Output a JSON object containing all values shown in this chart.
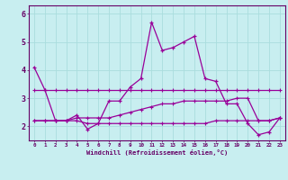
{
  "xlabel": "Windchill (Refroidissement éolien,°C)",
  "background_color": "#c8eef0",
  "grid_color": "#aadddd",
  "line_color": "#990099",
  "x_hours": [
    0,
    1,
    2,
    3,
    4,
    5,
    6,
    7,
    8,
    9,
    10,
    11,
    12,
    13,
    14,
    15,
    16,
    17,
    18,
    19,
    20,
    21,
    22,
    23
  ],
  "series1": [
    4.1,
    3.3,
    2.2,
    2.2,
    2.4,
    1.9,
    2.1,
    2.9,
    2.9,
    3.4,
    3.7,
    5.7,
    4.7,
    4.8,
    5.0,
    5.2,
    3.7,
    3.6,
    2.8,
    2.8,
    2.1,
    1.7,
    1.8,
    2.3
  ],
  "series2": [
    2.2,
    2.2,
    2.2,
    2.2,
    2.2,
    2.1,
    2.1,
    2.1,
    2.1,
    2.1,
    2.1,
    2.1,
    2.1,
    2.1,
    2.1,
    2.1,
    2.1,
    2.2,
    2.2,
    2.2,
    2.2,
    2.2,
    2.2,
    2.3
  ],
  "series3": [
    2.2,
    2.2,
    2.2,
    2.2,
    2.3,
    2.3,
    2.3,
    2.3,
    2.4,
    2.5,
    2.6,
    2.7,
    2.8,
    2.8,
    2.9,
    2.9,
    2.9,
    2.9,
    2.9,
    3.0,
    3.0,
    2.2,
    2.2,
    2.3
  ],
  "series4": [
    3.3,
    3.3,
    3.3,
    3.3,
    3.3,
    3.3,
    3.3,
    3.3,
    3.3,
    3.3,
    3.3,
    3.3,
    3.3,
    3.3,
    3.3,
    3.3,
    3.3,
    3.3,
    3.3,
    3.3,
    3.3,
    3.3,
    3.3,
    3.3
  ],
  "ylim": [
    1.5,
    6.3
  ],
  "yticks": [
    2,
    3,
    4,
    5,
    6
  ],
  "xticks": [
    0,
    1,
    2,
    3,
    4,
    5,
    6,
    7,
    8,
    9,
    10,
    11,
    12,
    13,
    14,
    15,
    16,
    17,
    18,
    19,
    20,
    21,
    22,
    23
  ]
}
